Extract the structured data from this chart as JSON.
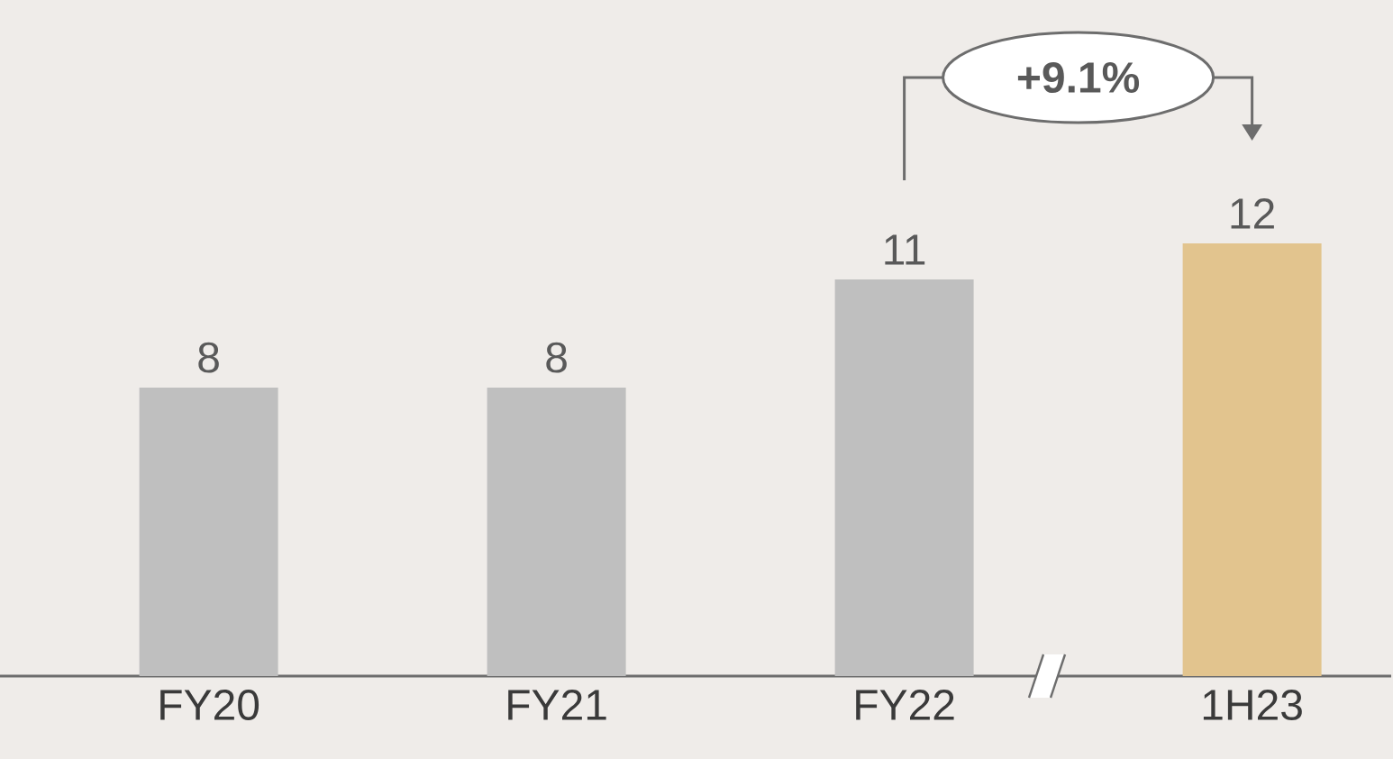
{
  "chart_data": {
    "type": "bar",
    "categories": [
      "FY20",
      "FY21",
      "FY22",
      "1H23"
    ],
    "values": [
      8,
      8,
      11,
      12
    ],
    "colors": [
      "#bfbfbf",
      "#bfbfbf",
      "#bfbfbf",
      "#e2c48e"
    ],
    "data_labels": true,
    "annotations": [
      "+9.1%"
    ]
  }
}
